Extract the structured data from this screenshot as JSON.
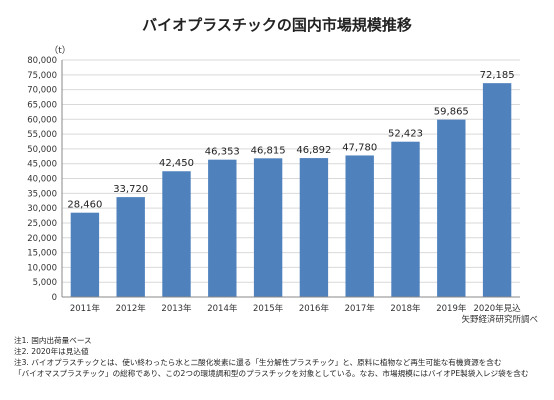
{
  "chart_data": {
    "type": "bar",
    "title": "バイオプラスチックの国内市場規模推移",
    "unit_label": "（t）",
    "categories": [
      "2011年",
      "2012年",
      "2013年",
      "2014年",
      "2015年",
      "2016年",
      "2017年",
      "2018年",
      "2019年",
      "2020年見込"
    ],
    "values": [
      28460,
      33720,
      42450,
      46353,
      46815,
      46892,
      47780,
      52423,
      59865,
      72185
    ],
    "value_labels": [
      "28,460",
      "33,720",
      "42,450",
      "46,353",
      "46,815",
      "46,892",
      "47,780",
      "52,423",
      "59,865",
      "72,185"
    ],
    "ylim": [
      0,
      80000
    ],
    "yticks": [
      0,
      5000,
      10000,
      15000,
      20000,
      25000,
      30000,
      35000,
      40000,
      45000,
      50000,
      55000,
      60000,
      65000,
      70000,
      75000,
      80000
    ],
    "ytick_labels": [
      "0",
      "5,000",
      "10,000",
      "15,000",
      "20,000",
      "25,000",
      "30,000",
      "35,000",
      "40,000",
      "45,000",
      "50,000",
      "55,000",
      "60,000",
      "65,000",
      "70,000",
      "75,000",
      "80,000"
    ],
    "grid": true,
    "bar_color": "#4f81bd",
    "source": "矢野経済研究所調べ"
  },
  "notes": [
    "注1.  国内出荷量ベース",
    "注2.  2020年は見込値",
    "注3.  バイオプラスチックとは、使い終わったら水と二酸化炭素に還る「生分解性プラスチック」と、原料に植物など再生可能な有機資源を含む",
    "        「バイオマスプラスチック」の総称であり、この2つの環境調和型のプラスチックを対象としている。なお、市場規模にはバイオPE製袋入レジ袋を含む"
  ]
}
